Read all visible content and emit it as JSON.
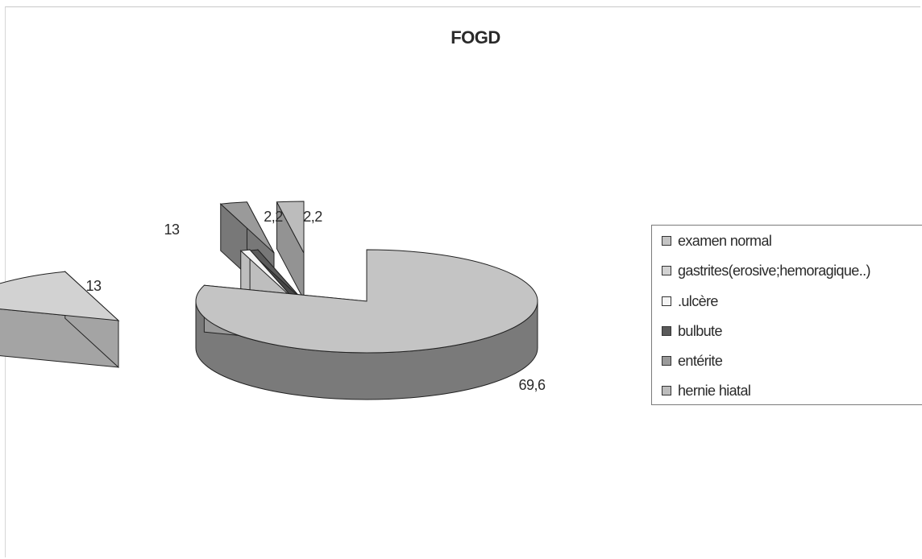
{
  "chart_data": {
    "type": "pie",
    "title": "FOGD",
    "style": "3d-exploded",
    "legend_position": "right",
    "categories": [
      "examen normal",
      "gastrites(erosive;hemoragique..)",
      ".ulcère",
      "bulbute",
      "entérite",
      "hernie hiatal"
    ],
    "values": [
      69.6,
      13,
      0,
      0,
      2.2,
      2.2
    ],
    "data_labels": [
      "69,6",
      "13",
      "",
      "",
      "2,2",
      "2,2"
    ],
    "colors": [
      "#c4c4c4",
      "#d2d2d2",
      "#f4f4f4",
      "#5a5a5a",
      "#9a9a9a",
      "#bcbcbc"
    ]
  }
}
